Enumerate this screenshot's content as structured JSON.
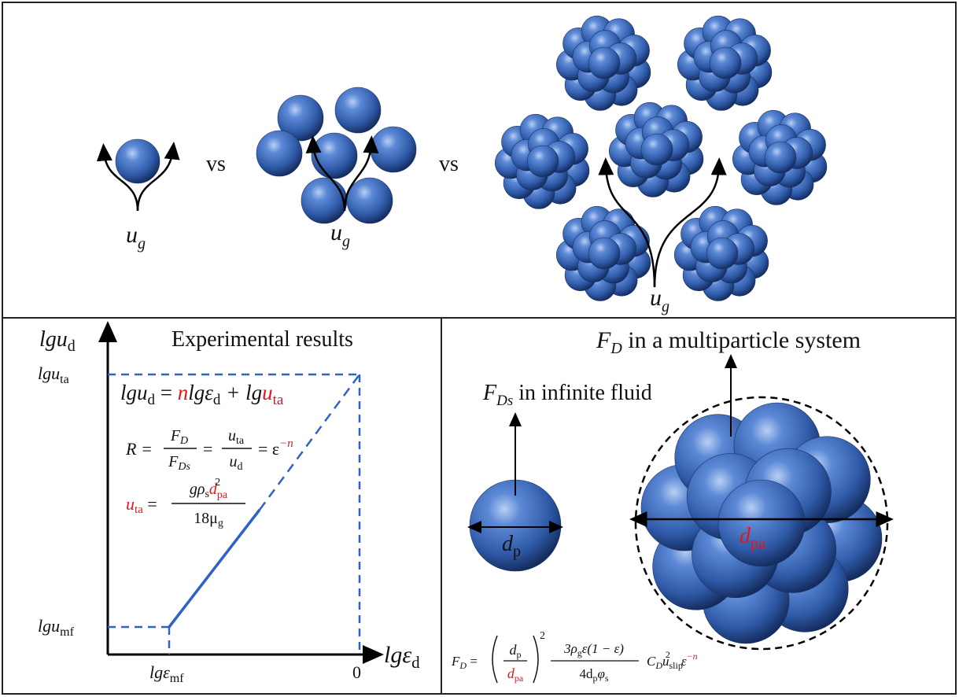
{
  "top": {
    "single_label": [
      "u",
      "g"
    ],
    "vs_1": "vs",
    "cluster_label": [
      "u",
      "g"
    ],
    "vs_2": "vs",
    "agglomerate_label": [
      "u",
      "g"
    ]
  },
  "experimental": {
    "title": "Experimental results",
    "y_axis": [
      "lgu",
      "d"
    ],
    "x_axis": [
      "lgε",
      "d"
    ],
    "y_upper": [
      "lgu",
      "ta"
    ],
    "y_lower": [
      "lgu",
      "mf"
    ],
    "x_left": [
      "lgε",
      "mf"
    ],
    "x_right": "0",
    "equation_1": [
      "lgu",
      "d",
      " = ",
      "n",
      "lgε",
      "d",
      " + lg",
      "u",
      "ta"
    ],
    "equation_2": {
      "lhs": "R =",
      "frac_1_num": [
        "F",
        "D"
      ],
      "frac_1_den": [
        "F",
        "Ds"
      ],
      "eq_1": "=",
      "frac_2_num": [
        "u",
        "ta"
      ],
      "frac_2_den": [
        "u",
        "d"
      ],
      "rhs": [
        "= ε",
        "−n"
      ]
    },
    "equation_3": {
      "lhs": [
        "u",
        "ta",
        " ="
      ],
      "num": [
        "gρ",
        "s",
        "d",
        "pa",
        "2"
      ],
      "den": [
        "18μ",
        "g"
      ]
    }
  },
  "comparison": {
    "multi_label": [
      "F",
      "D",
      " in a multiparticle system"
    ],
    "single_label": [
      "F",
      "Ds",
      " in infinite fluid"
    ],
    "single_diameter": [
      "d",
      "p"
    ],
    "agglomerate_diameter": [
      "d",
      "pa"
    ],
    "drag_formula": {
      "lhs": [
        "F",
        "D",
        " ="
      ],
      "ratio_num": [
        "d",
        "p"
      ],
      "ratio_den": [
        "d",
        "pa"
      ],
      "power": "2",
      "num": [
        "3ρ",
        "g",
        "ε(1 − ε)"
      ],
      "den": [
        "4d",
        "p",
        "φ",
        "s"
      ],
      "tail": [
        "C",
        "D",
        "u",
        "slip",
        "2",
        "ε",
        "−n"
      ]
    }
  }
}
